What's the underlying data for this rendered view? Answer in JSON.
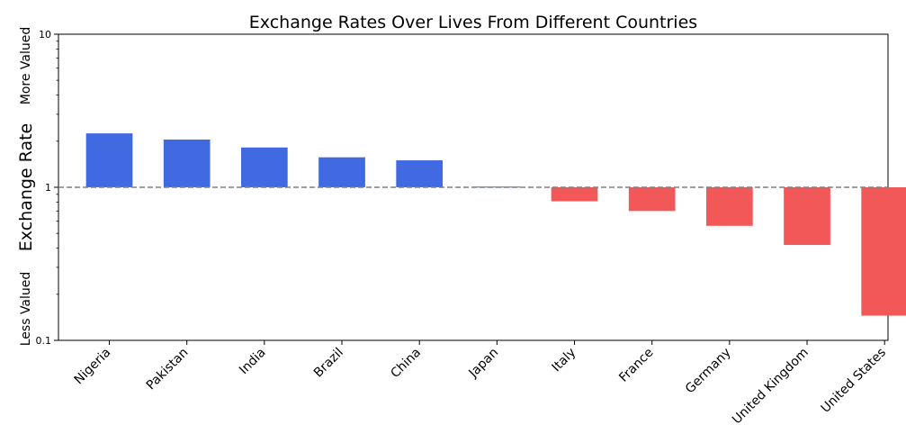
{
  "chart_data": {
    "type": "bar",
    "title": "Exchange Rates Over Lives From Different Countries",
    "xlabel": "",
    "ylabel": "Exchange Rate",
    "ylabel_top": "More Valued",
    "ylabel_bottom": "Less Valued",
    "yscale": "log",
    "ylim": [
      0.1,
      10
    ],
    "yticks": [
      {
        "value": 0.1,
        "label": "0.1"
      },
      {
        "value": 1,
        "label": "1"
      },
      {
        "value": 10,
        "label": "10"
      }
    ],
    "baseline": 1,
    "grid": false,
    "categories": [
      "Nigeria",
      "Pakistan",
      "India",
      "Brazil",
      "China",
      "Japan",
      "Italy",
      "France",
      "Germany",
      "United Kingdom",
      "United States"
    ],
    "values": [
      2.25,
      2.05,
      1.82,
      1.57,
      1.5,
      1.01,
      0.81,
      0.7,
      0.56,
      0.42,
      0.145
    ],
    "colors": {
      "above": "#4169e1",
      "below": "#f25858",
      "baseline_line": "#808080"
    }
  }
}
